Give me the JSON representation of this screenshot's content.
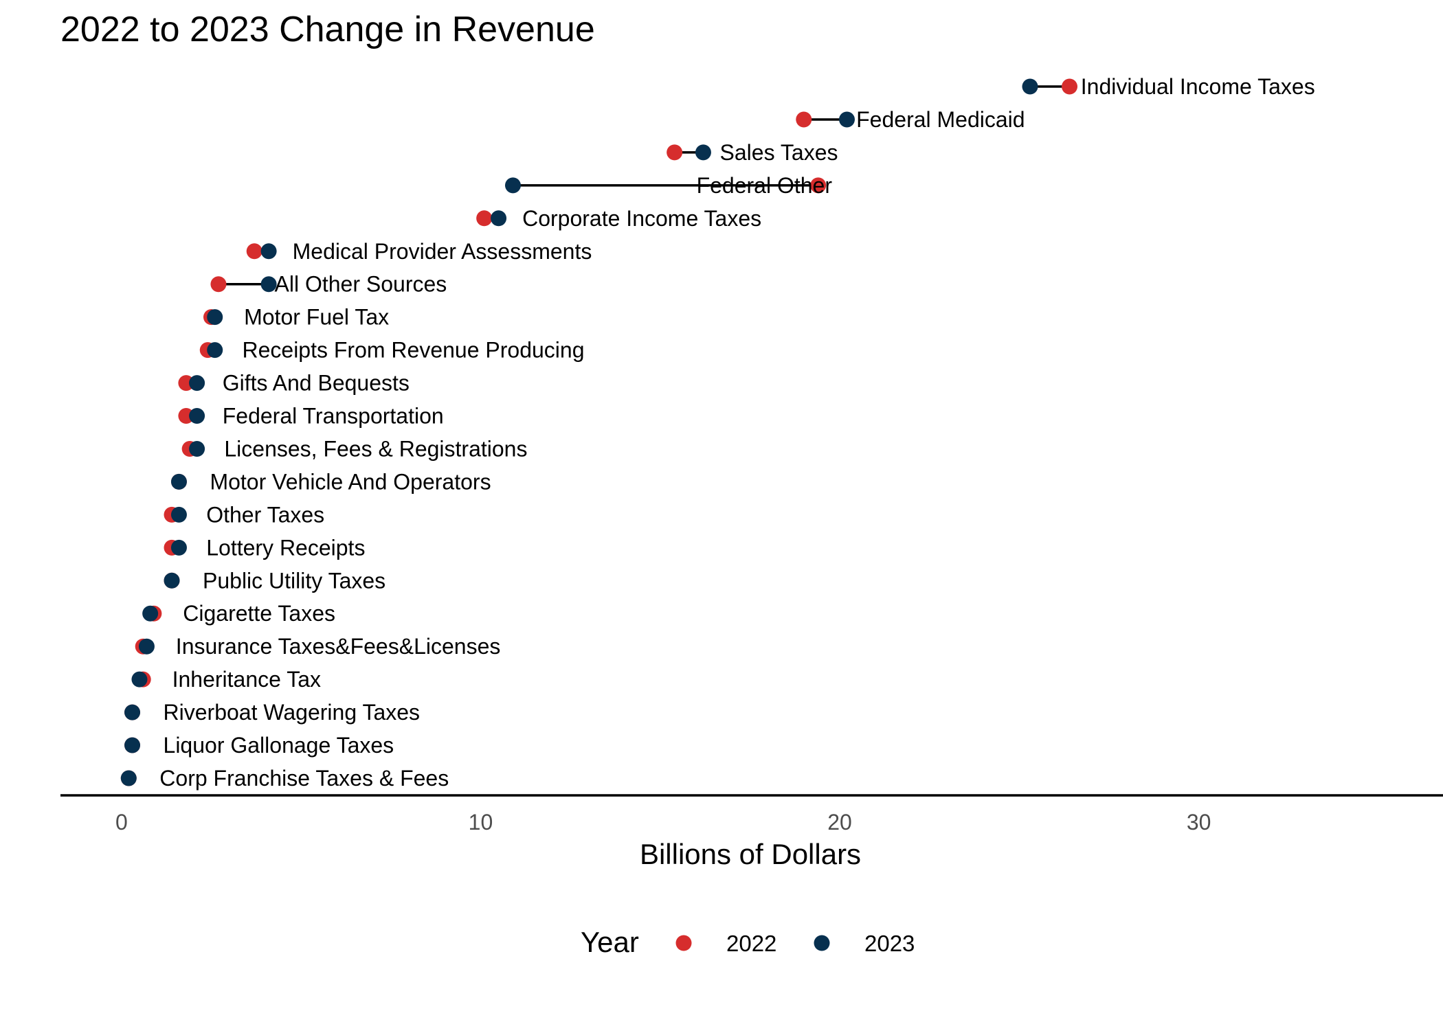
{
  "chart_data": {
    "type": "dumbbell",
    "title": "2022 to 2023 Change in Revenue",
    "xlabel": "Billions of Dollars",
    "ylabel": "",
    "xlim": [
      -1.7,
      36.8
    ],
    "xticks": [
      0,
      10,
      20,
      30
    ],
    "grid": false,
    "legend": {
      "title": "Year",
      "position": "bottom",
      "items": [
        {
          "label": "2022",
          "color": "#d62d2d"
        },
        {
          "label": "2023",
          "color": "#07304f"
        }
      ]
    },
    "series": [
      {
        "name": "2022",
        "color": "#d62d2d"
      },
      {
        "name": "2023",
        "color": "#07304f"
      }
    ],
    "categories": [
      {
        "label": "Individual Income Taxes",
        "v2022": 26.4,
        "v2023": 25.3
      },
      {
        "label": "Federal Medicaid",
        "v2022": 19.0,
        "v2023": 20.2
      },
      {
        "label": "Sales Taxes",
        "v2022": 15.4,
        "v2023": 16.2
      },
      {
        "label": "Federal Other",
        "v2022": 19.4,
        "v2023": 10.9
      },
      {
        "label": "Corporate Income Taxes",
        "v2022": 10.1,
        "v2023": 10.5
      },
      {
        "label": "Medical Provider Assessments",
        "v2022": 3.7,
        "v2023": 4.1
      },
      {
        "label": "All Other Sources",
        "v2022": 2.7,
        "v2023": 4.1
      },
      {
        "label": "Motor Fuel Tax",
        "v2022": 2.5,
        "v2023": 2.6
      },
      {
        "label": "Receipts From Revenue Producing",
        "v2022": 2.4,
        "v2023": 2.6
      },
      {
        "label": "Gifts And Bequests",
        "v2022": 1.8,
        "v2023": 2.1
      },
      {
        "label": "Federal Transportation",
        "v2022": 1.8,
        "v2023": 2.1
      },
      {
        "label": "Licenses, Fees & Registrations",
        "v2022": 1.9,
        "v2023": 2.1
      },
      {
        "label": "Motor Vehicle And Operators",
        "v2022": 1.6,
        "v2023": 1.6
      },
      {
        "label": "Other Taxes",
        "v2022": 1.4,
        "v2023": 1.6
      },
      {
        "label": "Lottery Receipts",
        "v2022": 1.4,
        "v2023": 1.6
      },
      {
        "label": "Public Utility Taxes",
        "v2022": 1.4,
        "v2023": 1.4
      },
      {
        "label": "Cigarette Taxes",
        "v2022": 0.9,
        "v2023": 0.8
      },
      {
        "label": "Insurance Taxes&Fees&Licenses",
        "v2022": 0.6,
        "v2023": 0.7
      },
      {
        "label": "Inheritance Tax",
        "v2022": 0.6,
        "v2023": 0.5
      },
      {
        "label": "Riverboat Wagering Taxes",
        "v2022": 0.3,
        "v2023": 0.3
      },
      {
        "label": "Liquor Gallonage Taxes",
        "v2022": 0.3,
        "v2023": 0.3
      },
      {
        "label": "Corp Franchise Taxes & Fees",
        "v2022": 0.2,
        "v2023": 0.2
      }
    ]
  }
}
